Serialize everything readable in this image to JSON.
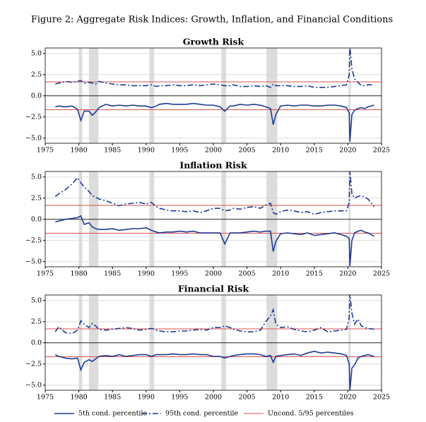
{
  "caption": "Figure 2: Aggregate Risk Indices: Growth, Inflation, and Financial Conditions",
  "legend": [
    {
      "label": "5th cond. percentile",
      "color": "#1f3a93",
      "dash": "none"
    },
    {
      "label": "95th cond. percentile",
      "color": "#1f3a93",
      "dash": "8,3,2,3"
    },
    {
      "label": "Uncond. 5/95 percentiles",
      "color": "#d9534f",
      "dash": "none"
    }
  ],
  "chart_data": [
    {
      "type": "line",
      "title": "Growth Risk",
      "x": [
        1976.5,
        1977,
        1978,
        1979,
        1979.8,
        1980.3,
        1980.8,
        1981.5,
        1982,
        1982.5,
        1983,
        1984,
        1985,
        1986,
        1987,
        1988,
        1989,
        1990,
        1990.8,
        1991.5,
        1992,
        1993,
        1994,
        1995,
        1996,
        1997,
        1998,
        1999,
        2000,
        2001,
        2001.7,
        2002.5,
        2003,
        2004,
        2005,
        2006,
        2007,
        2007.8,
        2008.5,
        2008.9,
        2009.3,
        2010,
        2011,
        2012,
        2013,
        2014,
        2015,
        2016,
        2017,
        2018,
        2019,
        2019.8,
        2020.2,
        2020.3,
        2020.6,
        2021,
        2021.5,
        2022,
        2022.5,
        2023,
        2023.9
      ],
      "series": [
        {
          "color": "#1f3a93",
          "dash": "none",
          "values": [
            -1.3,
            -1.2,
            -1.3,
            -1.2,
            -1.6,
            -2.9,
            -1.8,
            -1.8,
            -2.3,
            -1.9,
            -1.4,
            -1.0,
            -1.2,
            -1.1,
            -1.2,
            -1.1,
            -1.2,
            -1.2,
            -1.4,
            -1.2,
            -1.0,
            -0.9,
            -1.0,
            -1.0,
            -1.0,
            -0.9,
            -1.0,
            -1.1,
            -1.1,
            -1.3,
            -1.8,
            -1.2,
            -1.2,
            -1.0,
            -1.1,
            -1.0,
            -1.1,
            -1.3,
            -1.5,
            -3.4,
            -2.2,
            -1.2,
            -1.1,
            -1.2,
            -1.1,
            -1.1,
            -1.2,
            -1.2,
            -1.1,
            -1.1,
            -1.2,
            -1.4,
            -2.0,
            -5.4,
            -2.2,
            -1.7,
            -1.5,
            -1.4,
            -1.5,
            -1.3,
            -1.1
          ]
        },
        {
          "color": "#1f3a93",
          "dash": "8,3,2,3",
          "values": [
            1.4,
            1.5,
            1.7,
            1.6,
            1.7,
            1.8,
            1.5,
            1.6,
            1.5,
            1.4,
            1.7,
            1.5,
            1.4,
            1.3,
            1.3,
            1.2,
            1.2,
            1.2,
            1.3,
            1.1,
            1.2,
            1.2,
            1.3,
            1.2,
            1.2,
            1.3,
            1.2,
            1.3,
            1.4,
            1.3,
            1.2,
            1.2,
            1.3,
            1.1,
            1.1,
            1.2,
            1.1,
            1.2,
            1.0,
            1.4,
            1.2,
            1.2,
            1.2,
            1.1,
            1.1,
            1.2,
            1.0,
            1.0,
            1.0,
            1.1,
            1.2,
            1.3,
            2.5,
            5.8,
            3.2,
            2.0,
            1.6,
            1.2,
            1.2,
            1.3,
            1.3
          ]
        }
      ],
      "hlines": {
        "color": "#d9534f",
        "values": [
          -1.645,
          1.645
        ]
      },
      "shaded": [
        [
          1980.0,
          1980.5
        ],
        [
          1981.5,
          1982.9
        ],
        [
          1990.5,
          1991.2
        ],
        [
          2001.2,
          2001.9
        ],
        [
          2007.9,
          2009.5
        ],
        [
          2020.1,
          2020.4
        ]
      ],
      "xlim": [
        1975,
        2025
      ],
      "xticks": [
        1975,
        1980,
        1985,
        1990,
        1995,
        2000,
        2005,
        2010,
        2015,
        2020,
        2025
      ],
      "ylim": [
        -5.6,
        5.65
      ],
      "yticks": [
        {
          "value": -5,
          "label": "−5.0"
        },
        {
          "value": -2.5,
          "label": "−2.5"
        },
        {
          "value": 0,
          "label": "0.0"
        },
        2.5,
        {
          "value": 5,
          "label": "5.0"
        }
      ],
      "grid": true
    },
    {
      "type": "line",
      "title": "Inflation Risk",
      "x": [
        1976.5,
        1977,
        1978,
        1979,
        1979.8,
        1980.3,
        1980.8,
        1981.5,
        1982,
        1982.5,
        1983,
        1984,
        1985,
        1986,
        1987,
        1988,
        1989,
        1990,
        1990.8,
        1991.5,
        1992,
        1993,
        1994,
        1995,
        1996,
        1997,
        1998,
        1999,
        2000,
        2001,
        2001.7,
        2002.5,
        2003,
        2004,
        2005,
        2006,
        2007,
        2007.8,
        2008.5,
        2008.9,
        2009.3,
        2010,
        2011,
        2012,
        2013,
        2014,
        2015,
        2016,
        2017,
        2018,
        2019,
        2019.8,
        2020.2,
        2020.3,
        2020.6,
        2021,
        2021.5,
        2022,
        2022.5,
        2023,
        2023.9
      ],
      "series": [
        {
          "color": "#1f3a93",
          "dash": "none",
          "values": [
            -0.3,
            -0.2,
            0.0,
            0.1,
            0.2,
            0.4,
            -0.6,
            -0.4,
            -0.9,
            -1.1,
            -1.2,
            -1.2,
            -1.1,
            -1.3,
            -1.2,
            -1.1,
            -1.1,
            -1.0,
            -1.3,
            -1.5,
            -1.6,
            -1.5,
            -1.5,
            -1.4,
            -1.5,
            -1.4,
            -1.6,
            -1.6,
            -1.6,
            -1.6,
            -2.9,
            -1.6,
            -1.6,
            -1.6,
            -1.5,
            -1.4,
            -1.5,
            -1.4,
            -1.4,
            -3.8,
            -2.6,
            -1.7,
            -1.6,
            -1.7,
            -1.8,
            -1.6,
            -1.9,
            -1.8,
            -1.7,
            -1.6,
            -1.8,
            -2.0,
            -2.3,
            -5.5,
            -2.5,
            -1.6,
            -1.4,
            -1.3,
            -1.5,
            -1.6,
            -2.0
          ]
        },
        {
          "color": "#1f3a93",
          "dash": "8,3,2,3",
          "values": [
            2.7,
            3.0,
            3.5,
            4.2,
            4.9,
            4.3,
            3.8,
            3.3,
            2.8,
            2.6,
            2.4,
            2.2,
            1.9,
            1.6,
            1.8,
            1.9,
            2.0,
            1.8,
            2.0,
            1.5,
            1.3,
            1.1,
            1.0,
            1.0,
            0.9,
            1.0,
            0.8,
            1.0,
            1.3,
            1.3,
            1.0,
            1.1,
            1.3,
            1.2,
            1.4,
            1.5,
            1.3,
            1.7,
            1.9,
            0.8,
            0.6,
            0.9,
            1.1,
            1.0,
            0.8,
            0.9,
            0.6,
            0.8,
            0.9,
            1.0,
            1.0,
            1.0,
            2.0,
            5.8,
            3.0,
            2.5,
            2.7,
            2.8,
            2.6,
            2.4,
            1.5
          ]
        }
      ],
      "hlines": {
        "color": "#d9534f",
        "values": [
          -1.645,
          1.645
        ]
      },
      "shaded": [
        [
          1980.0,
          1980.5
        ],
        [
          1981.5,
          1982.9
        ],
        [
          1990.5,
          1991.2
        ],
        [
          2001.2,
          2001.9
        ],
        [
          2007.9,
          2009.5
        ],
        [
          2020.1,
          2020.4
        ]
      ],
      "xlim": [
        1975,
        2025
      ],
      "xticks": [
        1975,
        1980,
        1985,
        1990,
        1995,
        2000,
        2005,
        2010,
        2015,
        2020,
        2025
      ],
      "ylim": [
        -5.6,
        5.65
      ],
      "yticks": [
        {
          "value": -5,
          "label": "−5.0"
        },
        {
          "value": -2.5,
          "label": "−2.5"
        },
        {
          "value": 0,
          "label": "0.0"
        },
        2.5,
        {
          "value": 5,
          "label": "5.0"
        }
      ],
      "grid": true
    },
    {
      "type": "line",
      "title": "Financial Risk",
      "x": [
        1976.5,
        1977,
        1978,
        1979,
        1979.8,
        1980.3,
        1980.8,
        1981.5,
        1982,
        1982.5,
        1983,
        1984,
        1985,
        1986,
        1987,
        1988,
        1989,
        1990,
        1990.8,
        1991.5,
        1992,
        1993,
        1994,
        1995,
        1996,
        1997,
        1998,
        1999,
        2000,
        2001,
        2001.7,
        2002.5,
        2003,
        2004,
        2005,
        2006,
        2007,
        2007.8,
        2008.5,
        2008.9,
        2009.3,
        2010,
        2011,
        2012,
        2013,
        2014,
        2015,
        2016,
        2017,
        2018,
        2019,
        2019.8,
        2020.2,
        2020.3,
        2020.6,
        2021,
        2021.5,
        2022,
        2022.5,
        2023,
        2023.9
      ],
      "series": [
        {
          "color": "#1f3a93",
          "dash": "none",
          "values": [
            -1.4,
            -1.6,
            -1.8,
            -1.9,
            -1.8,
            -3.2,
            -2.3,
            -2.0,
            -2.2,
            -1.9,
            -1.6,
            -1.5,
            -1.6,
            -1.4,
            -1.6,
            -1.5,
            -1.4,
            -1.4,
            -1.6,
            -1.4,
            -1.4,
            -1.4,
            -1.3,
            -1.4,
            -1.4,
            -1.3,
            -1.4,
            -1.4,
            -1.6,
            -1.6,
            -1.8,
            -1.6,
            -1.5,
            -1.4,
            -1.3,
            -1.3,
            -1.4,
            -1.6,
            -1.5,
            -2.3,
            -1.6,
            -1.5,
            -1.4,
            -1.3,
            -1.5,
            -1.2,
            -1.0,
            -1.2,
            -1.1,
            -1.2,
            -1.3,
            -1.5,
            -2.5,
            -5.6,
            -3.0,
            -2.6,
            -1.8,
            -1.6,
            -1.5,
            -1.4,
            -1.6
          ]
        },
        {
          "color": "#1f3a93",
          "dash": "8,3,2,3",
          "values": [
            1.3,
            1.9,
            1.2,
            1.1,
            1.5,
            2.6,
            2.2,
            1.8,
            2.3,
            2.0,
            1.6,
            1.5,
            1.6,
            1.7,
            1.8,
            1.7,
            1.5,
            1.6,
            1.7,
            1.5,
            1.4,
            1.3,
            1.3,
            1.4,
            1.4,
            1.5,
            1.6,
            1.5,
            1.8,
            1.8,
            2.0,
            1.8,
            1.6,
            1.4,
            1.3,
            1.3,
            1.5,
            2.5,
            3.2,
            3.9,
            2.2,
            1.8,
            1.9,
            1.6,
            1.4,
            1.3,
            1.5,
            1.8,
            1.3,
            1.4,
            1.5,
            1.6,
            3.0,
            5.8,
            3.5,
            2.2,
            2.8,
            2.0,
            1.8,
            1.7,
            1.6
          ]
        }
      ],
      "hlines": {
        "color": "#d9534f",
        "values": [
          -1.645,
          1.645
        ]
      },
      "shaded": [
        [
          1980.0,
          1980.5
        ],
        [
          1981.5,
          1982.9
        ],
        [
          1990.5,
          1991.2
        ],
        [
          2001.2,
          2001.9
        ],
        [
          2007.9,
          2009.5
        ],
        [
          2020.1,
          2020.4
        ]
      ],
      "xlim": [
        1975,
        2025
      ],
      "xticks": [
        1975,
        1980,
        1985,
        1990,
        1995,
        2000,
        2005,
        2010,
        2015,
        2020,
        2025
      ],
      "ylim": [
        -5.6,
        5.65
      ],
      "yticks": [
        {
          "value": -5,
          "label": "−5.0"
        },
        {
          "value": -2.5,
          "label": "−2.5"
        },
        {
          "value": 0,
          "label": "0.0"
        },
        2.5,
        {
          "value": 5,
          "label": "5.0"
        }
      ],
      "grid": true
    }
  ]
}
